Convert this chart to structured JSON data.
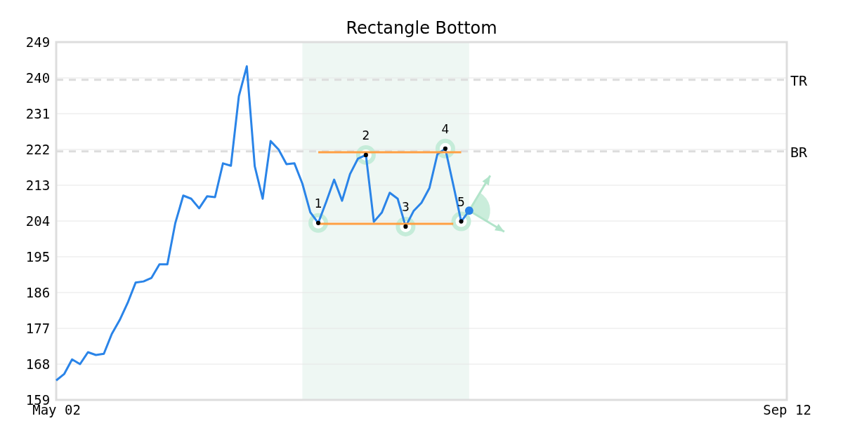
{
  "chart_data": {
    "type": "line",
    "title": "Rectangle Bottom",
    "categories": [
      "May 02",
      null,
      null,
      null,
      null,
      null,
      null,
      null,
      null,
      null,
      null,
      null,
      null,
      null,
      null,
      null,
      null,
      null,
      null,
      null,
      null,
      null,
      null,
      null,
      null,
      null,
      null,
      null,
      null,
      null,
      null,
      null,
      null,
      null,
      null,
      null,
      null,
      null,
      null,
      null,
      null,
      null,
      null,
      null,
      null,
      null,
      null,
      null,
      null,
      null,
      null,
      null,
      null,
      null,
      null,
      null,
      null,
      null,
      null,
      null,
      null,
      null,
      null,
      null,
      null,
      null,
      null,
      null,
      null,
      null,
      null,
      null,
      null,
      null,
      null,
      null,
      null,
      null,
      null,
      null,
      null,
      null,
      null,
      null,
      null,
      null,
      null,
      null,
      null,
      null,
      null,
      null,
      "Sep 12"
    ],
    "ylim": [
      159,
      249
    ],
    "yticks": [
      159,
      168,
      177,
      186,
      195,
      204,
      213,
      222,
      231,
      240,
      249
    ],
    "grid": "y",
    "ref_lines": [
      {
        "axis": "y",
        "value": 239.5,
        "label": "TR",
        "color": "#dddddd",
        "line_style": "dashed"
      },
      {
        "axis": "y",
        "value": 221.5,
        "label": "BR",
        "color": "#dddddd",
        "line_style": "dashed"
      }
    ],
    "annotations": [
      "1",
      "2",
      "3",
      "4",
      "5"
    ],
    "series": [
      {
        "color": "#2a84e8",
        "values": [
          163.9,
          165.5,
          169.2,
          168.0,
          171.0,
          170.3,
          170.6,
          175.6,
          179.1,
          183.4,
          188.5,
          188.8,
          189.7,
          193.1,
          193.1,
          203.5,
          210.4,
          209.6,
          207.2,
          210.2,
          210.0,
          218.5,
          217.9,
          235.4,
          242.9,
          217.8,
          209.6,
          224.1,
          222.0,
          218.3,
          218.5,
          213.4,
          206.2,
          203.5,
          208.8,
          214.4,
          209.1,
          215.8,
          219.7,
          220.6,
          203.8,
          206.1,
          211.1,
          209.6,
          202.6,
          206.5,
          208.6,
          212.3,
          220.8,
          222.2,
          213.1,
          203.9,
          206.6,
          null,
          null,
          null,
          null,
          null,
          null,
          null,
          null,
          null,
          null,
          null,
          null,
          null,
          null,
          null,
          null,
          null,
          null,
          null,
          null,
          null,
          null,
          null,
          null,
          null,
          null,
          null,
          null,
          null,
          null,
          null,
          null,
          null,
          null,
          null,
          null,
          null,
          null,
          null,
          null
        ]
      },
      {
        "color": "#ff9f43",
        "line_style": "solid",
        "values": [
          null,
          null,
          null,
          null,
          null,
          null,
          null,
          null,
          null,
          null,
          null,
          null,
          null,
          null,
          null,
          null,
          null,
          null,
          null,
          null,
          null,
          null,
          null,
          null,
          null,
          null,
          null,
          null,
          null,
          null,
          null,
          null,
          null,
          221.3,
          221.3,
          221.3,
          221.3,
          221.3,
          221.3,
          221.3,
          221.3,
          221.3,
          221.3,
          221.3,
          221.3,
          221.3,
          221.3,
          221.3,
          221.3,
          221.3,
          221.3,
          221.3,
          null,
          null,
          null,
          null,
          null,
          null,
          null,
          null,
          null,
          null,
          null,
          null,
          null,
          null,
          null,
          null,
          null,
          null,
          null,
          null,
          null,
          null,
          null,
          null,
          null,
          null,
          null,
          null,
          null,
          null,
          null,
          null,
          null,
          null,
          null,
          null,
          null,
          null,
          null,
          null,
          null
        ]
      },
      {
        "color": "#ff9f43",
        "line_style": "solid",
        "values": [
          null,
          null,
          null,
          null,
          null,
          null,
          null,
          null,
          null,
          null,
          null,
          null,
          null,
          null,
          null,
          null,
          null,
          null,
          null,
          null,
          null,
          null,
          null,
          null,
          null,
          null,
          null,
          null,
          null,
          null,
          null,
          null,
          null,
          203.3,
          203.3,
          203.3,
          203.3,
          203.3,
          203.3,
          203.3,
          203.3,
          203.3,
          203.3,
          203.3,
          203.3,
          203.3,
          203.3,
          203.3,
          203.3,
          203.3,
          203.3,
          null,
          null,
          null,
          null,
          null,
          null,
          null,
          null,
          null,
          null,
          null,
          null,
          null,
          null,
          null,
          null,
          null,
          null,
          null,
          null,
          null,
          null,
          null,
          null,
          null,
          null,
          null,
          null,
          null,
          null,
          null,
          null,
          null,
          null,
          null,
          null,
          null,
          null,
          null,
          null,
          null,
          null
        ]
      },
      {
        "type": "scatter",
        "color": "#000000",
        "marker": "circle",
        "values": [
          null,
          null,
          null,
          null,
          null,
          null,
          null,
          null,
          null,
          null,
          null,
          null,
          null,
          null,
          null,
          null,
          null,
          null,
          null,
          null,
          null,
          null,
          null,
          null,
          null,
          null,
          null,
          null,
          null,
          null,
          null,
          null,
          null,
          203.5,
          null,
          null,
          null,
          null,
          null,
          220.6,
          null,
          null,
          null,
          null,
          202.6,
          null,
          null,
          null,
          null,
          222.2,
          null,
          203.9,
          null,
          null,
          null,
          null,
          null,
          null,
          null,
          null,
          null,
          null,
          null,
          null,
          null,
          null,
          null,
          null,
          null,
          null,
          null,
          null,
          null,
          null,
          null,
          null,
          null,
          null,
          null,
          null,
          null,
          null,
          null,
          null,
          null,
          null,
          null,
          null,
          null,
          null,
          null,
          null,
          null
        ]
      },
      {
        "type": "scatter",
        "color": "#2a84e8",
        "marker": "circle",
        "values": [
          null,
          null,
          null,
          null,
          null,
          null,
          null,
          null,
          null,
          null,
          null,
          null,
          null,
          null,
          null,
          null,
          null,
          null,
          null,
          null,
          null,
          null,
          null,
          null,
          null,
          null,
          null,
          null,
          null,
          null,
          null,
          null,
          null,
          null,
          null,
          null,
          null,
          null,
          null,
          null,
          null,
          null,
          null,
          null,
          null,
          null,
          null,
          null,
          null,
          null,
          null,
          null,
          206.6,
          null,
          null,
          null,
          null,
          null,
          null,
          null,
          null,
          null,
          null,
          null,
          null,
          null,
          null,
          null,
          null,
          null,
          null,
          null,
          null,
          null,
          null,
          null,
          null,
          null,
          null,
          null,
          null,
          null,
          null,
          null,
          null,
          null,
          null,
          null,
          null,
          null,
          null,
          null,
          null
        ]
      }
    ]
  }
}
